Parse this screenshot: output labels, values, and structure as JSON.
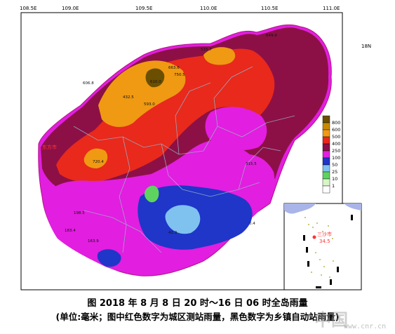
{
  "map": {
    "longitude_labels": [
      "108.5E",
      "109.0E",
      "109.5E",
      "110.0E",
      "110.5E",
      "111.0E"
    ],
    "latitude_label": "18N",
    "city_labels": [
      "东方市",
      "三亚市"
    ],
    "legend": {
      "levels": [
        "800",
        "600",
        "500",
        "400",
        "250",
        "100",
        "50",
        "25",
        "10",
        "1"
      ],
      "colors": [
        "#6b4f00",
        "#c98a00",
        "#ef9a12",
        "#e8291c",
        "#8c1045",
        "#e21ee0",
        "#1f36c8",
        "#7fc2f0",
        "#5fd35f",
        "#d8f5c8",
        "#ffffff"
      ]
    },
    "inset": {
      "label_city": "三沙市",
      "label_value": "34.5"
    },
    "station_values_sample": [
      "649.9",
      "515.7",
      "663.6",
      "432.5",
      "593.0",
      "610.0",
      "750.5",
      "606.8",
      "720.4",
      "315.5",
      "198.5",
      "183.4",
      "163.9",
      "42.9",
      "0.4"
    ]
  },
  "caption": {
    "title": "图    2018 年 8 月 8 日 20 时～16 日 06 时全岛雨量",
    "note": "(单位:毫米；图中红色数字为城区测站雨量，黑色数字为乡镇自动站雨量)"
  },
  "watermark": {
    "text": "中国",
    "url": "www.cnr.cn"
  }
}
